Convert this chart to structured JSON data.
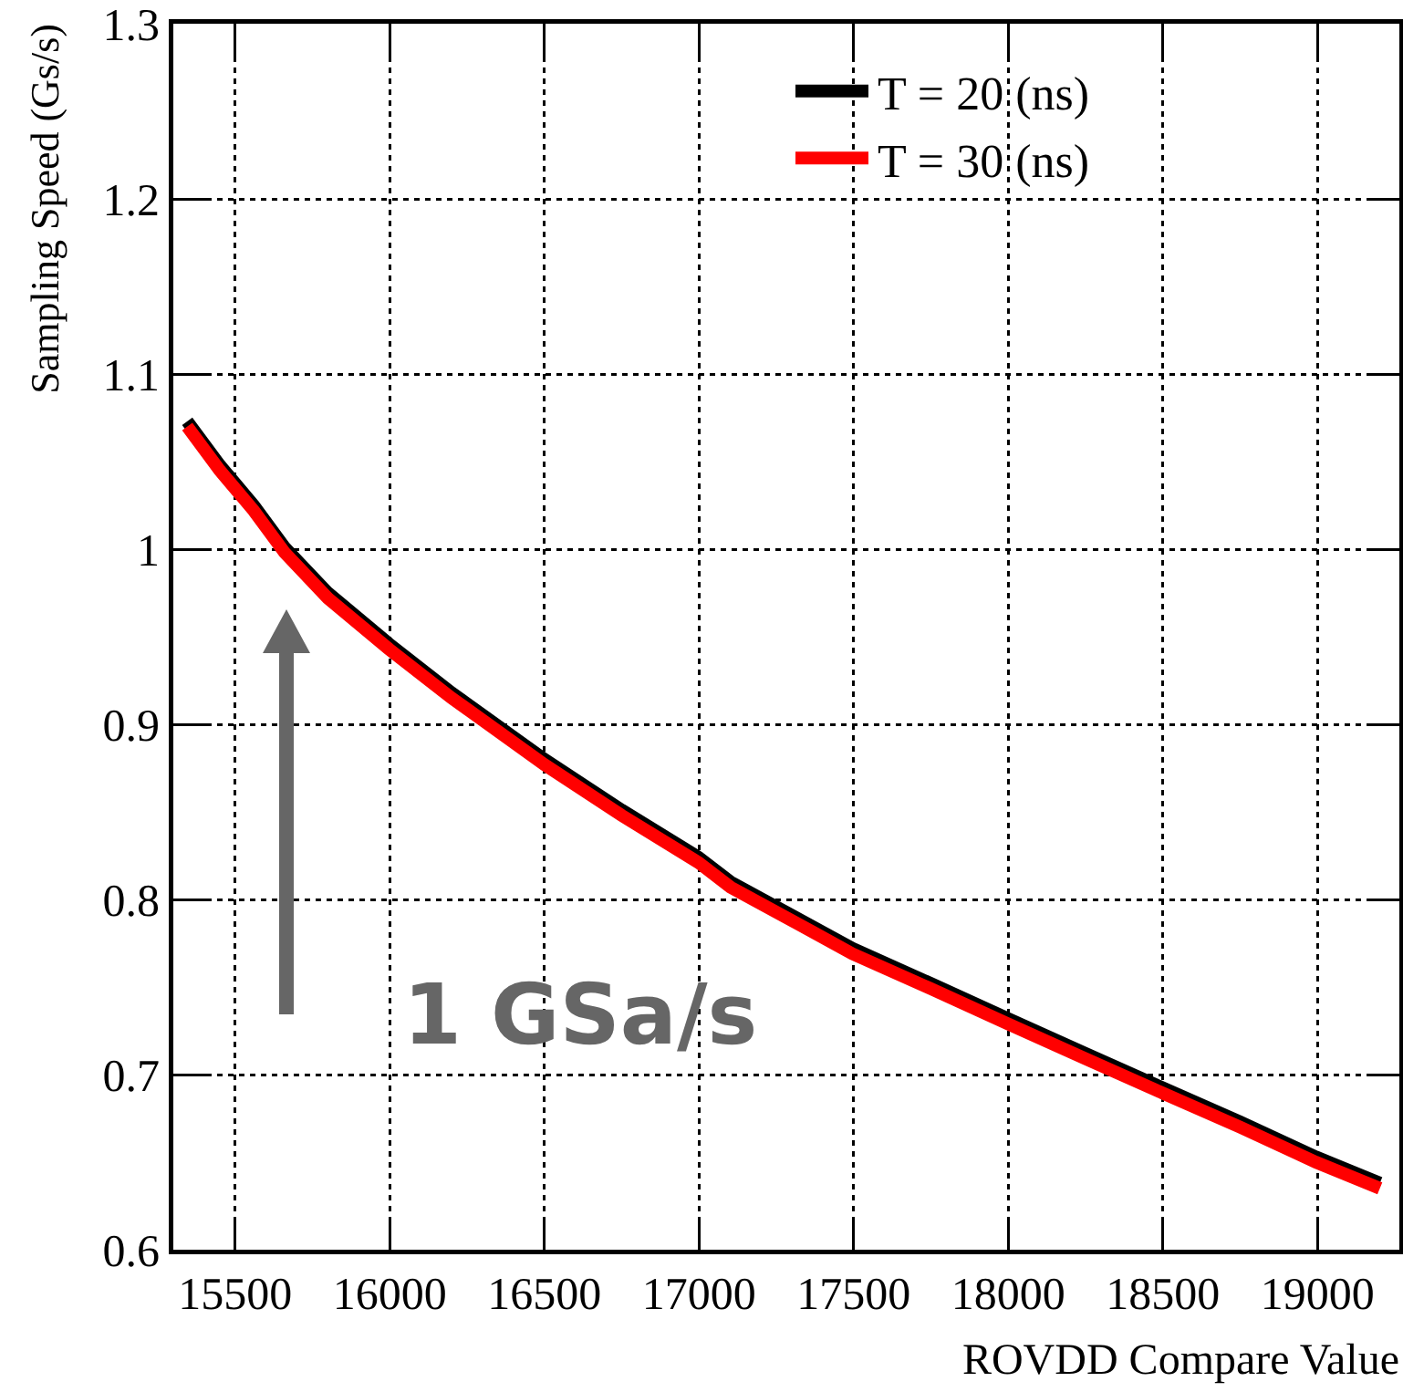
{
  "chart_data": {
    "type": "line",
    "xlabel": "ROVDD Compare Value",
    "ylabel": "Sampling Speed (Gs/s)",
    "x": [
      15345,
      15450,
      15560,
      15660,
      15800,
      15997,
      16200,
      16500,
      16750,
      16999,
      17102,
      17300,
      17496,
      17750,
      17999,
      18250,
      18492,
      18750,
      18995,
      19202
    ],
    "series": [
      {
        "name": "T = 20 (ns)",
        "color": "#000000",
        "values": [
          1.073,
          1.048,
          1.025,
          1.001,
          0.975,
          0.946,
          0.918,
          0.88,
          0.851,
          0.824,
          0.81,
          0.791,
          0.772,
          0.752,
          0.732,
          0.712,
          0.693,
          0.673,
          0.653,
          0.638
        ]
      },
      {
        "name": "T = 30 (ns)",
        "color": "#ff0000",
        "values": [
          1.07,
          1.045,
          1.022,
          0.998,
          0.972,
          0.943,
          0.915,
          0.877,
          0.848,
          0.821,
          0.807,
          0.788,
          0.769,
          0.749,
          0.729,
          0.709,
          0.69,
          0.67,
          0.65,
          0.635
        ]
      }
    ],
    "xlim": [
      15300,
      19265
    ],
    "xticks": [
      15500,
      16000,
      16500,
      17000,
      17500,
      18000,
      18500,
      19000
    ],
    "ylim": [
      0.6,
      1.3
    ],
    "yticks": [
      0.6,
      0.7,
      0.8,
      0.9,
      1,
      1.1,
      1.2,
      1.3
    ],
    "grid": true,
    "legend": "top right",
    "line_style": "solid",
    "marker": "none",
    "annotations": [
      "1 GSa/s"
    ]
  }
}
